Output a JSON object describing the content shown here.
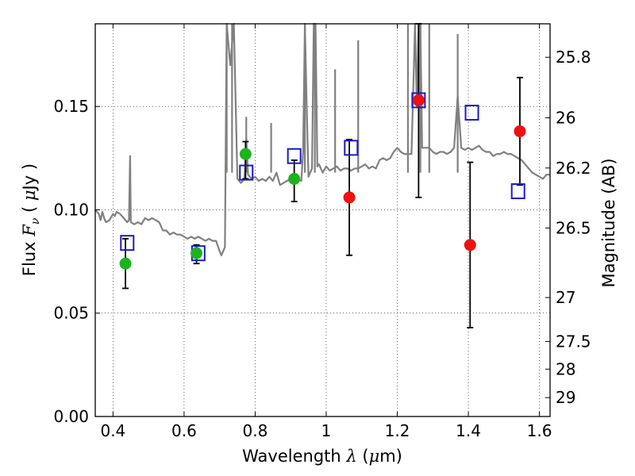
{
  "chart_data": {
    "type": "scatter",
    "xlabel": {
      "pre": "Wavelength ",
      "sym": "λ",
      "mid": " (",
      "mu": "μ",
      "unit": "m)"
    },
    "ylabel": {
      "pre": "Flux ",
      "sym": "F",
      "sub": "ν",
      "mid": " ( ",
      "mu": "μ",
      "unit": "Jy )"
    },
    "ylabel_right": "Magnitude (AB)",
    "xlim": [
      0.35,
      1.63
    ],
    "ylim": [
      0.0,
      0.19
    ],
    "x_ticks": [
      "0.4",
      "0.6",
      "0.8",
      "1",
      "1.2",
      "1.4",
      "1.6"
    ],
    "x_tick_values": [
      0.4,
      0.6,
      0.8,
      1.0,
      1.2,
      1.4,
      1.6
    ],
    "y_ticks": [
      "0.00",
      "0.05",
      "0.10",
      "0.15"
    ],
    "y_tick_values": [
      0.0,
      0.05,
      0.1,
      0.15
    ],
    "mag_ticks": [
      "25.8",
      "26",
      "26.2",
      "26.5",
      "27",
      "27.5",
      "28",
      "29"
    ],
    "grid": true,
    "colors": {
      "detected": "#1db31d",
      "upper": "#ee1111",
      "model_points": "#1a1acc",
      "spectrum": "#808080",
      "errorbar": "#000000"
    },
    "spectrum": {
      "x": [
        0.35,
        0.36,
        0.365,
        0.37,
        0.375,
        0.38,
        0.39,
        0.4,
        0.405,
        0.41,
        0.42,
        0.43,
        0.44,
        0.445,
        0.448,
        0.45,
        0.46,
        0.47,
        0.48,
        0.49,
        0.5,
        0.51,
        0.52,
        0.53,
        0.54,
        0.55,
        0.56,
        0.57,
        0.58,
        0.59,
        0.6,
        0.61,
        0.62,
        0.63,
        0.64,
        0.65,
        0.66,
        0.67,
        0.68,
        0.69,
        0.7,
        0.705,
        0.71,
        0.715,
        0.72,
        0.73,
        0.74,
        0.75,
        0.76,
        0.77,
        0.775,
        0.78,
        0.79,
        0.8,
        0.81,
        0.82,
        0.83,
        0.84,
        0.85,
        0.86,
        0.87,
        0.88,
        0.89,
        0.9,
        0.91,
        0.92,
        0.93,
        0.935,
        0.94,
        0.945,
        0.95,
        0.955,
        0.96,
        0.965,
        0.97,
        0.975,
        0.98,
        0.99,
        1.0,
        1.01,
        1.02,
        1.03,
        1.04,
        1.05,
        1.06,
        1.07,
        1.08,
        1.09,
        1.1,
        1.11,
        1.12,
        1.13,
        1.14,
        1.15,
        1.16,
        1.17,
        1.18,
        1.19,
        1.2,
        1.21,
        1.22,
        1.23,
        1.24,
        1.25,
        1.255,
        1.26,
        1.265,
        1.27,
        1.28,
        1.29,
        1.3,
        1.31,
        1.32,
        1.33,
        1.34,
        1.35,
        1.36,
        1.37,
        1.38,
        1.39,
        1.4,
        1.41,
        1.42,
        1.43,
        1.44,
        1.45,
        1.46,
        1.47,
        1.48,
        1.49,
        1.5,
        1.51,
        1.52,
        1.53,
        1.54,
        1.55,
        1.56,
        1.57,
        1.58,
        1.59,
        1.6,
        1.61,
        1.62,
        1.63
      ],
      "y": [
        0.1,
        0.098,
        0.095,
        0.099,
        0.096,
        0.094,
        0.095,
        0.098,
        0.097,
        0.099,
        0.098,
        0.096,
        0.094,
        0.095,
        0.126,
        0.094,
        0.093,
        0.094,
        0.093,
        0.096,
        0.095,
        0.096,
        0.095,
        0.094,
        0.09,
        0.09,
        0.088,
        0.089,
        0.088,
        0.088,
        0.087,
        0.086,
        0.087,
        0.086,
        0.087,
        0.086,
        0.085,
        0.086,
        0.085,
        0.085,
        0.08,
        0.078,
        0.08,
        0.082,
        0.19,
        0.17,
        0.19,
        0.115,
        0.113,
        0.115,
        0.135,
        0.117,
        0.115,
        0.116,
        0.114,
        0.115,
        0.114,
        0.116,
        0.114,
        0.118,
        0.112,
        0.113,
        0.114,
        0.115,
        0.116,
        0.115,
        0.114,
        0.128,
        0.19,
        0.15,
        0.116,
        0.118,
        0.12,
        0.19,
        0.19,
        0.121,
        0.122,
        0.118,
        0.121,
        0.119,
        0.12,
        0.121,
        0.119,
        0.12,
        0.12,
        0.119,
        0.12,
        0.12,
        0.121,
        0.122,
        0.12,
        0.121,
        0.12,
        0.124,
        0.125,
        0.124,
        0.125,
        0.128,
        0.13,
        0.128,
        0.127,
        0.127,
        0.127,
        0.19,
        0.15,
        0.19,
        0.19,
        0.13,
        0.13,
        0.13,
        0.128,
        0.127,
        0.128,
        0.128,
        0.127,
        0.128,
        0.13,
        0.155,
        0.13,
        0.129,
        0.13,
        0.129,
        0.13,
        0.131,
        0.129,
        0.128,
        0.128,
        0.126,
        0.127,
        0.127,
        0.128,
        0.127,
        0.127,
        0.126,
        0.125,
        0.124,
        0.122,
        0.12,
        0.118,
        0.117,
        0.116,
        0.115,
        0.117,
        0.117
      ]
    },
    "peaks": [
      {
        "x": 0.72,
        "y": 0.19
      },
      {
        "x": 0.735,
        "y": 0.19
      },
      {
        "x": 0.775,
        "y": 0.145
      },
      {
        "x": 0.845,
        "y": 0.142
      },
      {
        "x": 0.94,
        "y": 0.19
      },
      {
        "x": 0.968,
        "y": 0.19
      },
      {
        "x": 1.025,
        "y": 0.168
      },
      {
        "x": 1.09,
        "y": 0.182
      },
      {
        "x": 1.23,
        "y": 0.19
      },
      {
        "x": 1.265,
        "y": 0.19
      },
      {
        "x": 1.29,
        "y": 0.19
      },
      {
        "x": 1.37,
        "y": 0.185
      }
    ],
    "detections": {
      "x": [
        0.435,
        0.635,
        0.773,
        0.91
      ],
      "y": [
        0.074,
        0.079,
        0.127,
        0.115
      ],
      "yerr_low": [
        0.062,
        0.074,
        0.115,
        0.104
      ],
      "yerr_high": [
        0.086,
        0.083,
        0.133,
        0.124
      ]
    },
    "upper_points": {
      "x": [
        1.065,
        1.26,
        1.405,
        1.545
      ],
      "y": [
        0.106,
        0.153,
        0.083,
        0.138
      ],
      "yerr_low": [
        0.078,
        0.106,
        0.043,
        0.112
      ],
      "yerr_high": [
        0.134,
        0.19,
        0.123,
        0.164
      ]
    },
    "model_photometry": {
      "x": [
        0.44,
        0.64,
        0.775,
        0.91,
        1.07,
        1.26,
        1.41,
        1.54
      ],
      "y": [
        0.084,
        0.079,
        0.118,
        0.126,
        0.13,
        0.153,
        0.147,
        0.109
      ]
    }
  }
}
